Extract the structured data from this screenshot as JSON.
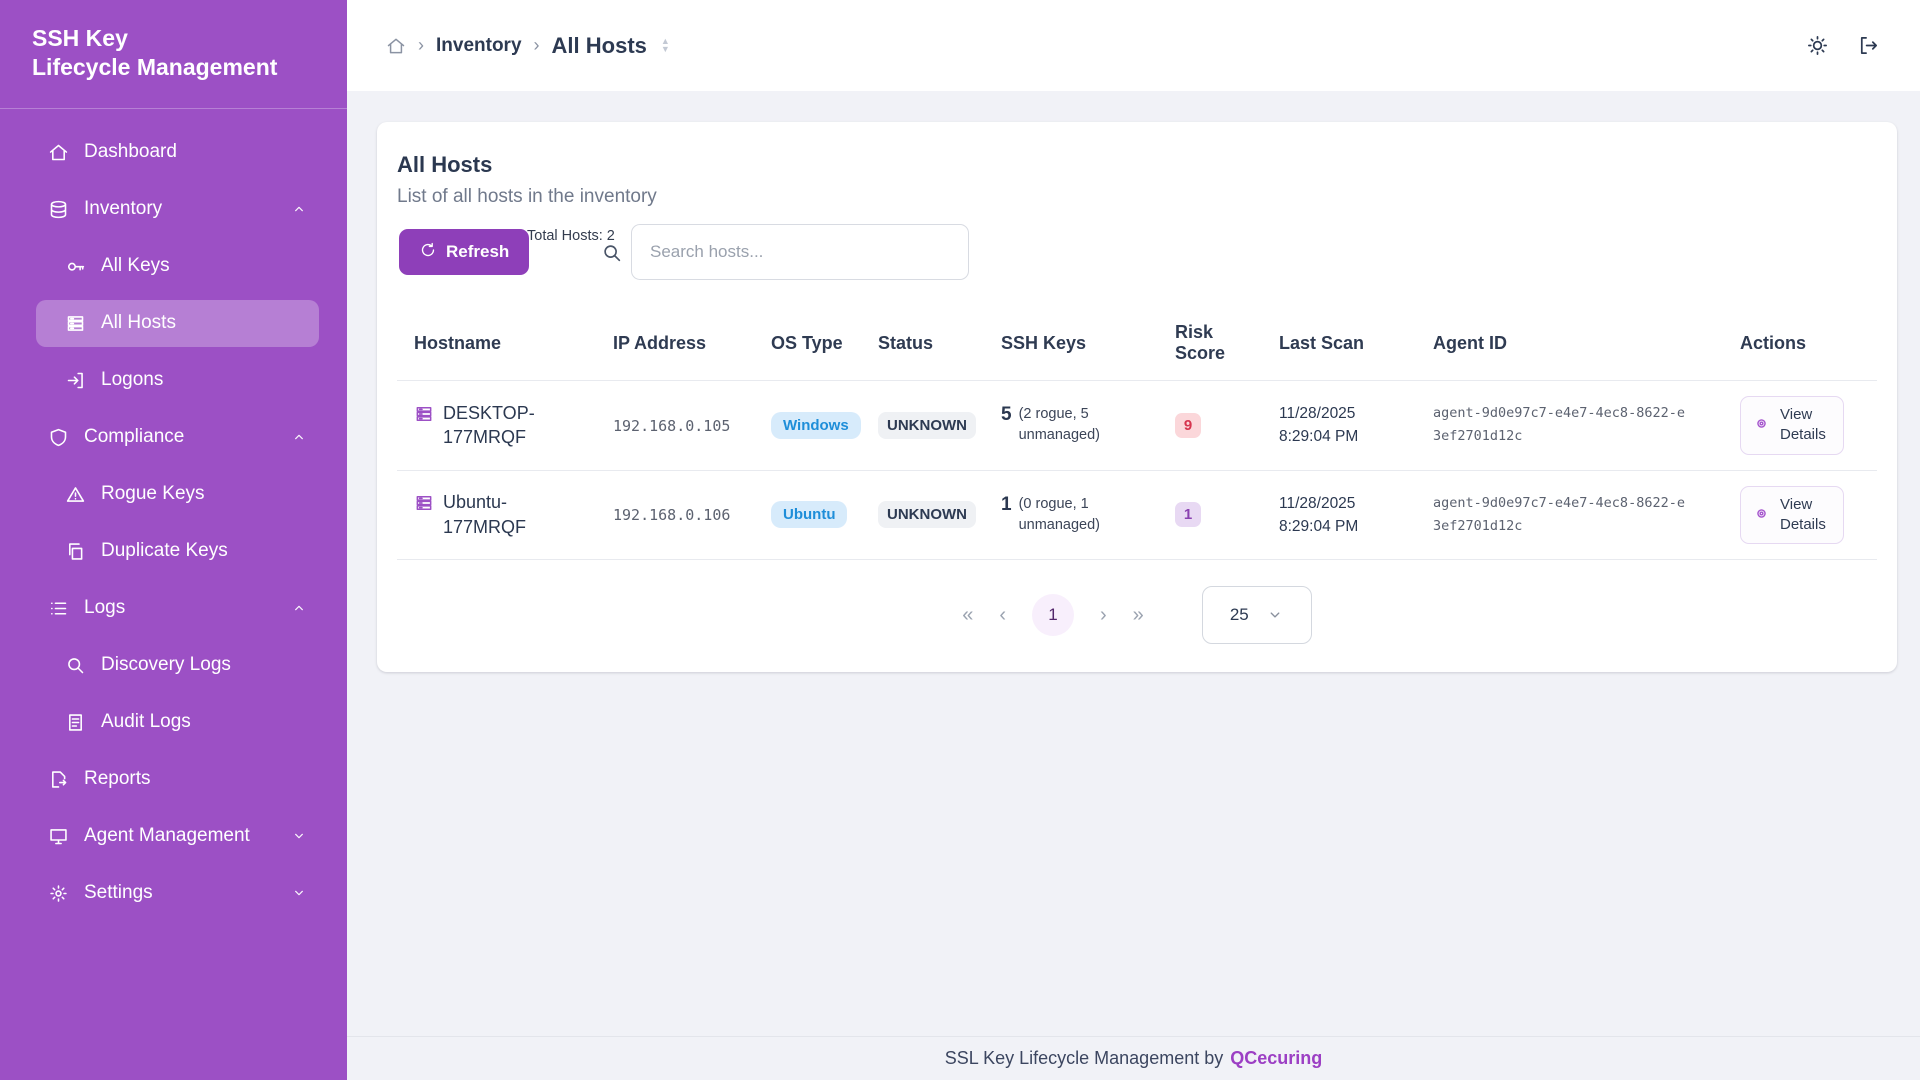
{
  "app": {
    "title_line1": "SSH Key",
    "title_line2": "Lifecycle Management"
  },
  "sidebar": {
    "items": [
      {
        "label": "Dashboard",
        "icon": "home",
        "level": 0
      },
      {
        "label": "Inventory",
        "icon": "database",
        "level": 0,
        "chevron": "up"
      },
      {
        "label": "All Keys",
        "icon": "key",
        "level": 1
      },
      {
        "label": "All Hosts",
        "icon": "server",
        "level": 1,
        "active": true
      },
      {
        "label": "Logons",
        "icon": "login",
        "level": 1
      },
      {
        "label": "Compliance",
        "icon": "shield",
        "level": 0,
        "chevron": "up"
      },
      {
        "label": "Rogue Keys",
        "icon": "warning",
        "level": 1
      },
      {
        "label": "Duplicate Keys",
        "icon": "copy",
        "level": 1
      },
      {
        "label": "Logs",
        "icon": "list",
        "level": 0,
        "chevron": "up"
      },
      {
        "label": "Discovery Logs",
        "icon": "search",
        "level": 1
      },
      {
        "label": "Audit Logs",
        "icon": "document",
        "level": 1
      },
      {
        "label": "Reports",
        "icon": "report",
        "level": 0
      },
      {
        "label": "Agent Management",
        "icon": "monitor",
        "level": 0,
        "chevron": "down"
      },
      {
        "label": "Settings",
        "icon": "gear",
        "level": 0,
        "chevron": "down"
      }
    ]
  },
  "topbar": {
    "breadcrumb": [
      {
        "label": "Inventory"
      },
      {
        "label": "All Hosts"
      }
    ],
    "icons": [
      "sun-icon",
      "logout-icon"
    ]
  },
  "page": {
    "title": "All Hosts",
    "subtitle": "List of all hosts in the inventory",
    "refresh_label": "Refresh",
    "total_hosts_label": "Total Hosts: 2",
    "search_placeholder": "Search hosts..."
  },
  "table": {
    "columns": [
      "Hostname",
      "IP Address",
      "OS Type",
      "Status",
      "SSH Keys",
      "Risk Score",
      "Last Scan",
      "Agent ID",
      "Actions"
    ],
    "rows": [
      {
        "hostname": "DESKTOP-177MRQF",
        "ip": "192.168.0.105",
        "os": "Windows",
        "status": "UNKNOWN",
        "ssh_keys_count": "5",
        "ssh_keys_detail": "(2 rogue, 5 unmanaged)",
        "risk_score": "9",
        "risk_level": "high",
        "last_scan_date": "11/28/2025",
        "last_scan_time": "8:29:04 PM",
        "agent_id": "agent-9d0e97c7-e4e7-4ec8-8622-e3ef2701d12c",
        "action_label": "View Details"
      },
      {
        "hostname": "Ubuntu-177MRQF",
        "ip": "192.168.0.106",
        "os": "Ubuntu",
        "status": "UNKNOWN",
        "ssh_keys_count": "1",
        "ssh_keys_detail": "(0 rogue, 1 unmanaged)",
        "risk_score": "1",
        "risk_level": "low",
        "last_scan_date": "11/28/2025",
        "last_scan_time": "8:29:04 PM",
        "agent_id": "agent-9d0e97c7-e4e7-4ec8-8622-e3ef2701d12c",
        "action_label": "View Details"
      }
    ]
  },
  "pagination": {
    "first": "«",
    "prev": "‹",
    "current_page": "1",
    "next": "›",
    "last": "»",
    "page_size": "25"
  },
  "footer": {
    "text": "SSL Key Lifecycle Management by",
    "brand": "QCecuring"
  },
  "colors": {
    "sidebar": "#9c50c5",
    "sidebar_active": "#b57dd3",
    "accent_button": "#8e3fb9",
    "os_badge_bg": "#d7ebfb",
    "os_badge_text": "#1e8ed9",
    "status_badge_bg": "#eff1f4",
    "risk_high_bg": "#fbd7da",
    "risk_high_text": "#d6344e",
    "risk_low_bg": "#e8d9f3",
    "risk_low_text": "#8a41b0",
    "brand_text": "#9c3fc4",
    "text_dark": "#2d3a52"
  }
}
